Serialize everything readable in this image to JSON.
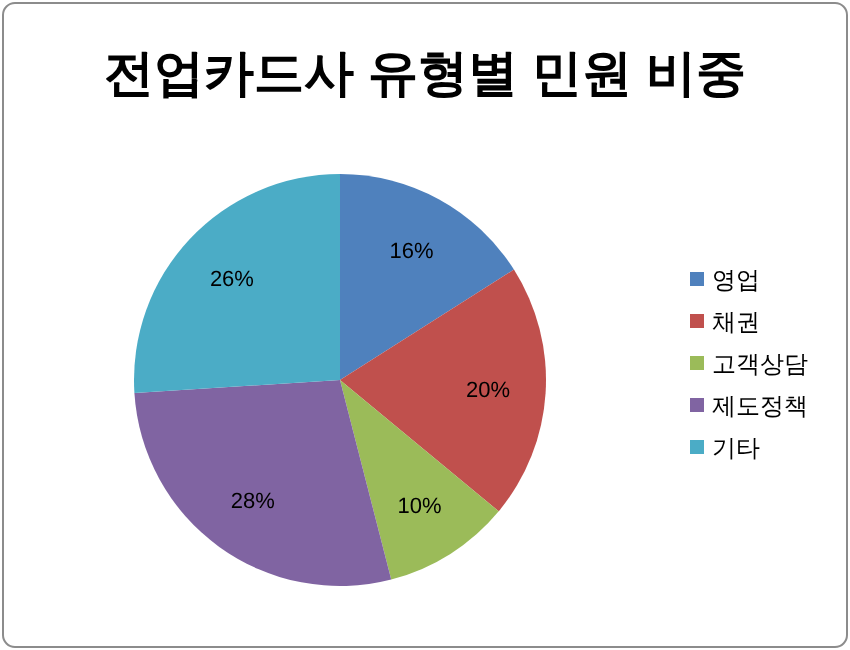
{
  "chart_data": {
    "type": "pie",
    "title": "전업카드사 유형별 민원 비중",
    "categories": [
      "영업",
      "채권",
      "고객상담",
      "제도정책",
      "기타"
    ],
    "values": [
      16,
      20,
      10,
      28,
      26
    ],
    "colors": [
      "#4f81bd",
      "#c0504d",
      "#9bbb59",
      "#8064a2",
      "#4bacc6"
    ],
    "value_labels": [
      "16%",
      "20%",
      "10%",
      "28%",
      "26%"
    ],
    "legend": "right"
  }
}
